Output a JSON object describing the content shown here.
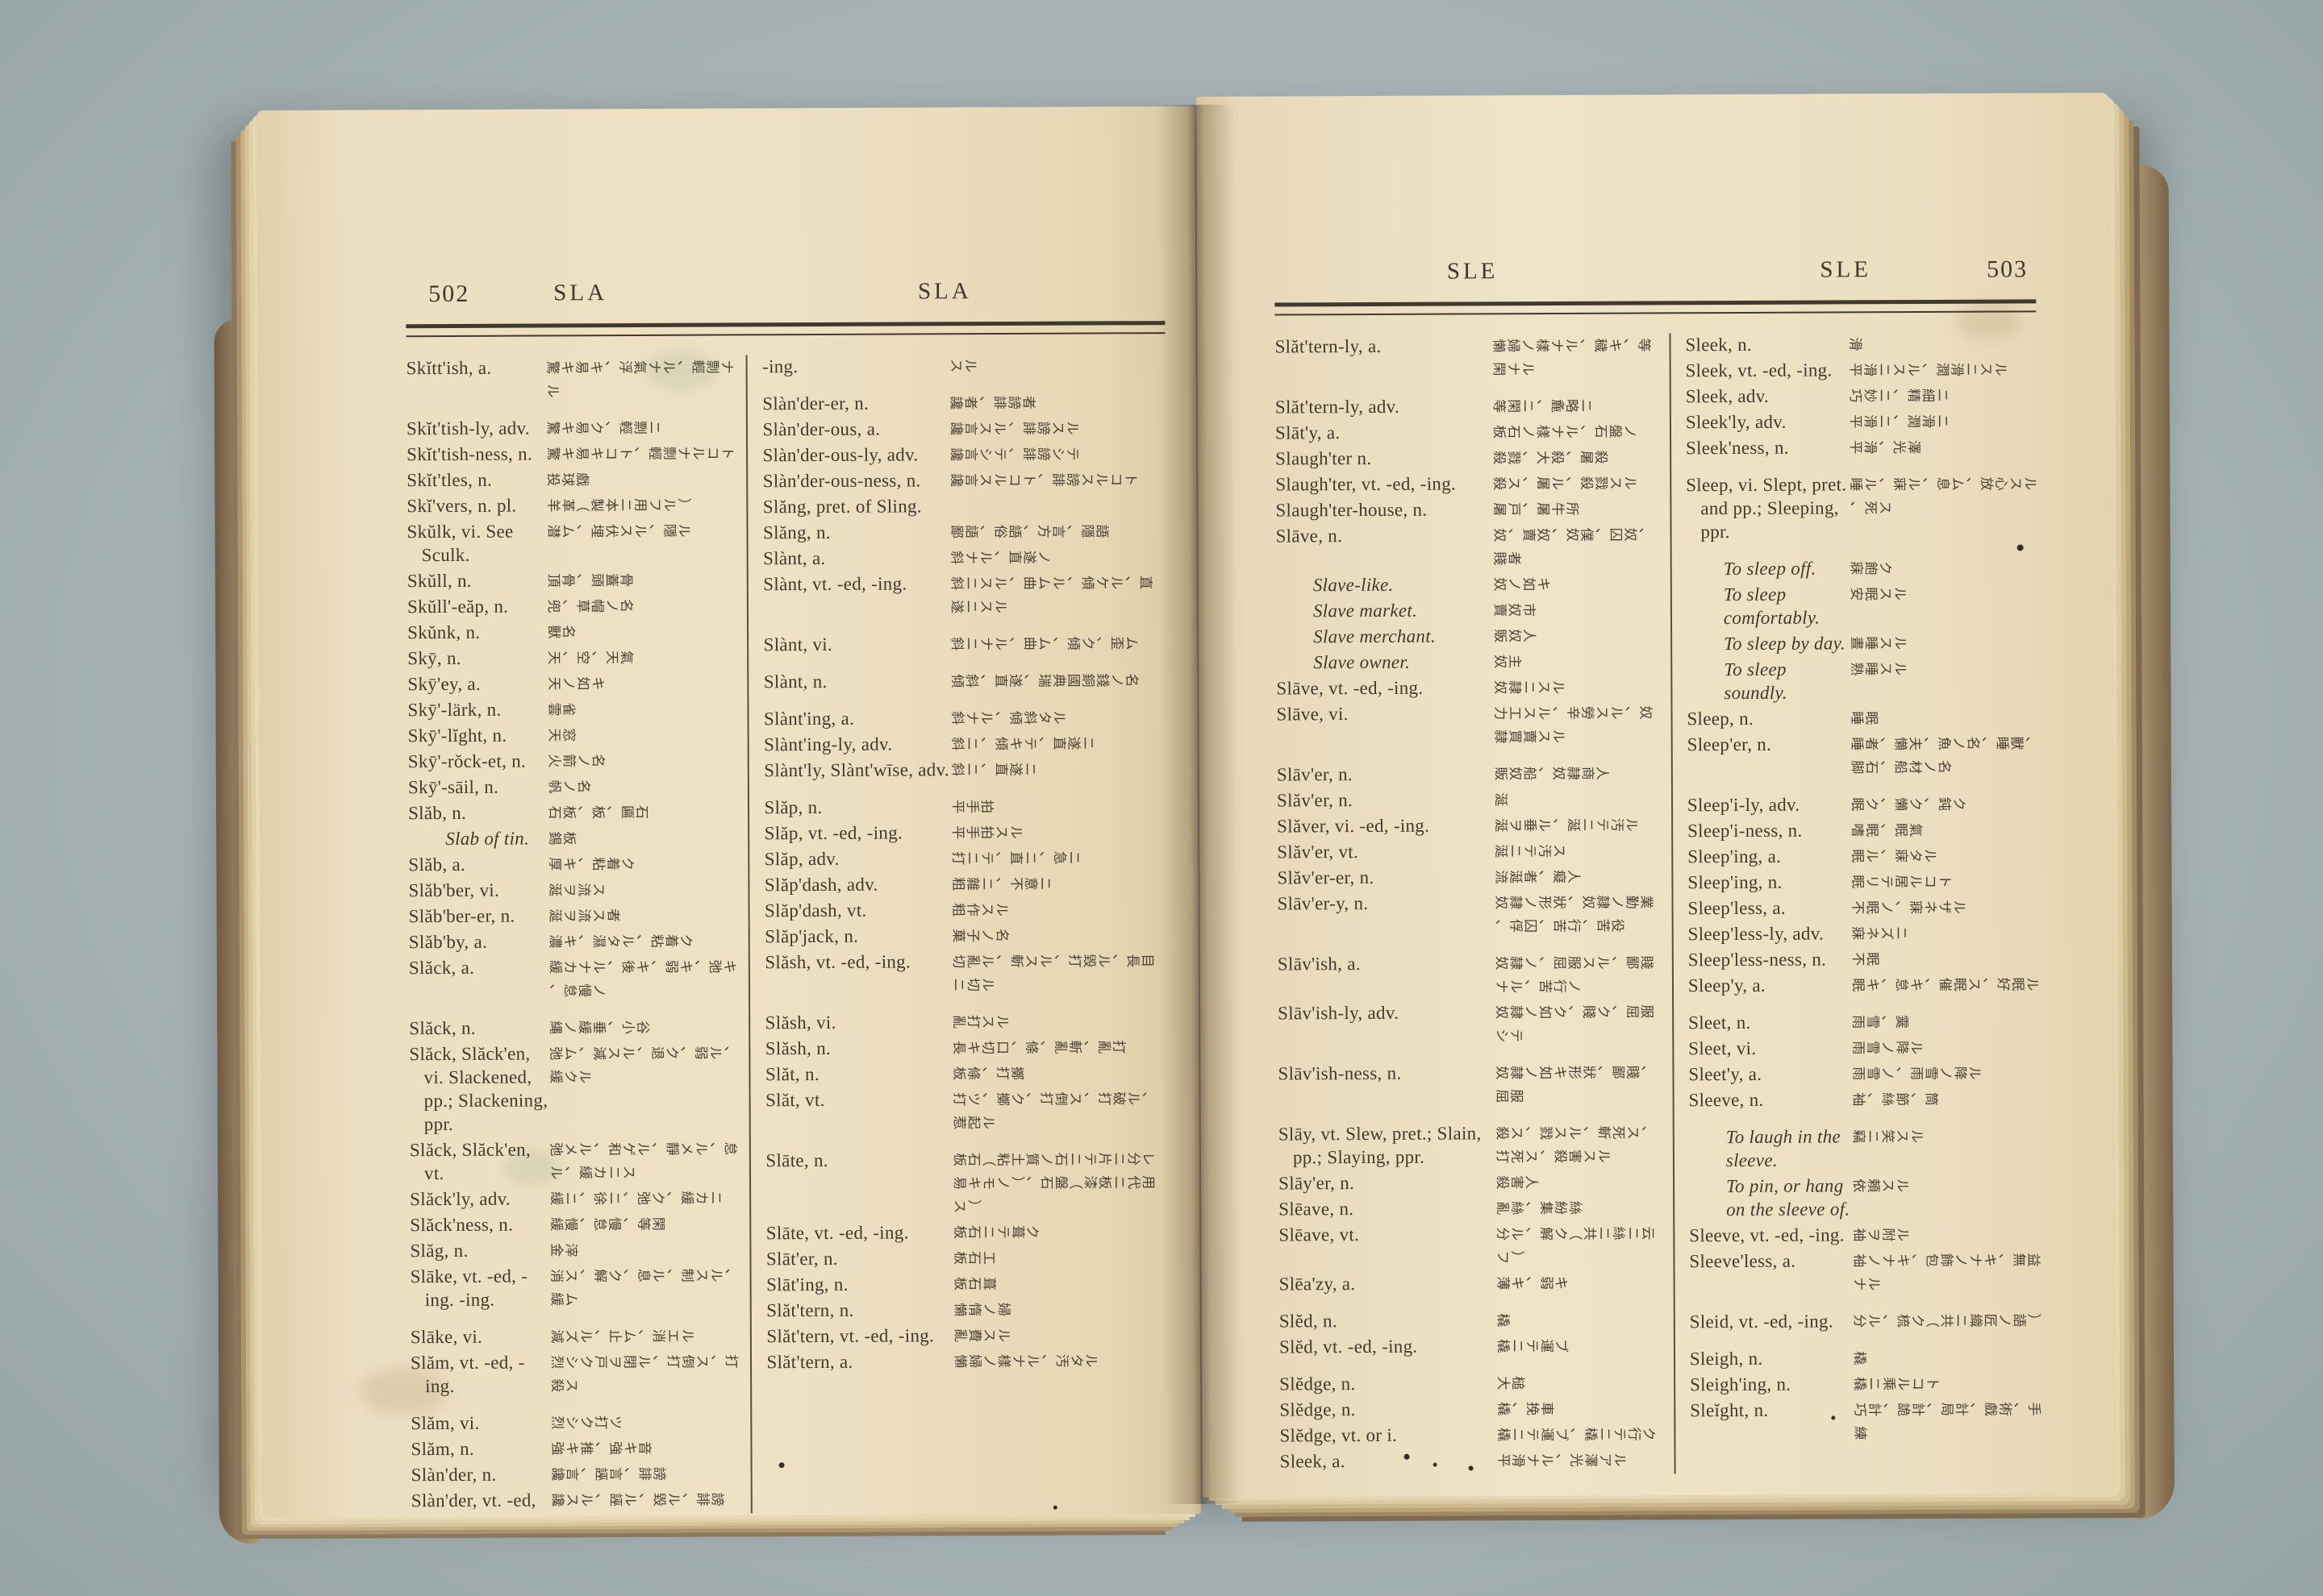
{
  "photo": {
    "background_hex": "#a7b3b4",
    "paper_hex": "#e9dbba",
    "ink_hex": "#41392e"
  },
  "book": {
    "pages": [
      {
        "page_number": "502",
        "header_col1": "SLA",
        "header_col2": "SLA",
        "columns": [
          [
            {
              "en": "Skĭtt'ish, a.",
              "jp": "驚キ易キ、浮氣ナル、輕剽ナル",
              "gap": true
            },
            {
              "en": "Skĭt'tish-ly, adv.",
              "jp": "驚キ易ク、輕剽ニ"
            },
            {
              "en": "Skĭt'tish-ness, n.",
              "jp": "驚キ易キコト、輕剽ナルコト"
            },
            {
              "en": "Skĭt'tles, n.",
              "jp": "投球戲"
            },
            {
              "en": "Skĭ'vers, n. pl.",
              "jp": "羊革（製本ニ用フル）"
            },
            {
              "en": "Skŭlk, vi. See Sculk.",
              "jp": "潜ム、埋伏スル、隱ル"
            },
            {
              "en": "Skŭll, n.",
              "jp": "頂骨、頭蓋骨"
            },
            {
              "en": "Skŭll'-eăp, n.",
              "jp": "兜、草帽ノ名"
            },
            {
              "en": "Skŭnk, n.",
              "jp": "獸名"
            },
            {
              "en": "Skȳ, n.",
              "jp": "天、空、天氣"
            },
            {
              "en": "Skȳ'ey, a.",
              "jp": "天ノ如キ"
            },
            {
              "en": "Skȳ'-lärk, n.",
              "jp": "雲雀"
            },
            {
              "en": "Skȳ'-lĭght, n.",
              "jp": "天窓"
            },
            {
              "en": "Skȳ'-rŏck-et, n.",
              "jp": "火箭ノ名"
            },
            {
              "en": "Skȳ'-sāil, n.",
              "jp": "帆ノ名"
            },
            {
              "en": "Slăb, n.",
              "jp": "石板、板、匾石"
            },
            {
              "en": "Slab of tin.",
              "jp": "錫板",
              "sub": true
            },
            {
              "en": "Slăb, a.",
              "jp": "厚キ、粘着ク"
            },
            {
              "en": "Slăb'ber, vi.",
              "jp": "涎ヲ流ス"
            },
            {
              "en": "Slăb'ber-er, n.",
              "jp": "涎ヲ流ス者"
            },
            {
              "en": "Slăb'by, a.",
              "jp": "濃キ、濕タル、粘着ク"
            },
            {
              "en": "Slăck, a.",
              "jp": "緩カナル、後キ、弱キ、弛キ、怠慢ノ",
              "gap": true
            },
            {
              "en": "Slăck, n.",
              "jp": "縄ノ緩垂、小谷"
            },
            {
              "en": "Slăck, Slăck'en, vi. Slackened, pp.; Slackening, ppr.",
              "jp": "弛ム、減スル、退ク、弱ル、緩クル"
            },
            {
              "en": "Slăck, Slăck'en, vt.",
              "jp": "弛メル、和ゲル、靜メル、怠ル、緩カニス"
            },
            {
              "en": "Slăck'ly, adv.",
              "jp": "緩ニ、徐ニ、弛ク、緩カニ"
            },
            {
              "en": "Slăck'ness, n.",
              "jp": "緩慢、怠慢、等閑"
            },
            {
              "en": "Slăg, n.",
              "jp": "金滓"
            },
            {
              "en": "Slāke, vt. -ed, -ing. -ing.",
              "jp": "消ス、解ク、息ル、制スル、緩ム",
              "gap": true
            },
            {
              "en": "Slāke, vi.",
              "jp": "減ズル、止ム、消エル"
            },
            {
              "en": "Slăm, vt. -ed, -ing.",
              "jp": "烈シク戸ヲ閉ル、打倒ス、打殺ス",
              "gap": true
            },
            {
              "en": "Slăm, vi.",
              "jp": "烈シク打ツ"
            },
            {
              "en": "Slăm, n.",
              "jp": "強キ推、強キ音"
            },
            {
              "en": "Slàn'der, n.",
              "jp": "讒言、誣言、誹謗"
            },
            {
              "en": "Slàn'der, vt. -ed,",
              "jp": "讒スル、誣ル、毀ル、誹謗"
            }
          ],
          [
            {
              "en": "-ing.",
              "jp": "スル",
              "gap": true
            },
            {
              "en": "Slàn'der-er, n.",
              "jp": "讒者、誹謗者"
            },
            {
              "en": "Slàn'der-ous, a.",
              "jp": "讒言スル、誹謗スル"
            },
            {
              "en": "Slàn'der-ous-ly, adv.",
              "jp": "讒言シテ、誹謗シテ"
            },
            {
              "en": "Slàn'der-ous-ness, n.",
              "jp": "讒言スルコト、誹謗スルコト"
            },
            {
              "en": "Slăng, pret. of Sling.",
              "jp": ""
            },
            {
              "en": "Slăng, n.",
              "jp": "鄙語、俗語、方言、隱語"
            },
            {
              "en": "Slànt, a.",
              "jp": "斜ナル、直遂ノ"
            },
            {
              "en": "Slànt, vt. -ed, -ing.",
              "jp": "斜ニスル、曲ムル、傾ケル、直遂ニスル",
              "gap": true
            },
            {
              "en": "Slànt, vi.",
              "jp": "斜ニナル、曲ム、傾ク、歪ム",
              "gap": true
            },
            {
              "en": "Slànt, n.",
              "jp": "傾斜、直遂、瑞典國銅錢ノ名",
              "gap": true
            },
            {
              "en": "Slànt'ing, a.",
              "jp": "斜ナル、傾斜タル"
            },
            {
              "en": "Slànt'ing-ly, adv.",
              "jp": "斜ニ、傾キテ、直遂ニ"
            },
            {
              "en": "Slànt'ly, Slànt'wīse, adv.",
              "jp": "斜ニ、直遂ニ",
              "gap": true
            },
            {
              "en": "Slăp, n.",
              "jp": "平手拍"
            },
            {
              "en": "Slăp, vt. -ed, -ing.",
              "jp": "平手拍スル"
            },
            {
              "en": "Slăp, adv.",
              "jp": "打ニテ、直ニ、急ニ"
            },
            {
              "en": "Slăp'dash, adv.",
              "jp": "粗雜ニ、不意ニ"
            },
            {
              "en": "Slăp'dash, vt.",
              "jp": "粗作スル"
            },
            {
              "en": "Slăp'jack, n.",
              "jp": "菓子ノ名"
            },
            {
              "en": "Slăsh, vt. -ed, -ing.",
              "jp": "切亂ル、斬スル、打毀ル、長目ニ切ル",
              "gap": true
            },
            {
              "en": "Slăsh, vi.",
              "jp": "亂打スル"
            },
            {
              "en": "Slăsh, n.",
              "jp": "長キ切口、條、亂斬、亂打"
            },
            {
              "en": "Slăt, n.",
              "jp": "板條、打擲"
            },
            {
              "en": "Slăt, vt.",
              "jp": "打ツ、擲ク、打倒ス、打破ル、惹起ル",
              "gap": true
            },
            {
              "en": "Slāte, n.",
              "jp": "板石（粘土質ノ石ニテ片ニ分レ易キモノ）、石盤（漆板ニ代用ス）"
            },
            {
              "en": "Slāte, vt. -ed, -ing.",
              "jp": "板石ニテ葺ク"
            },
            {
              "en": "Slāt'er, n.",
              "jp": "板石工"
            },
            {
              "en": "Slāt'ing, n.",
              "jp": "板石葺"
            },
            {
              "en": "Slăt'tern, n.",
              "jp": "懶惰ノ婦"
            },
            {
              "en": "Slăt'tern, vt. -ed, -ing.",
              "jp": "亂費スル"
            },
            {
              "en": "Slăt'tern, a.",
              "jp": "懶婦ノ樣ナル、汚タル"
            }
          ]
        ]
      },
      {
        "page_number": "503",
        "header_col1": "SLE",
        "header_col2": "SLE",
        "columns": [
          [
            {
              "en": "Slăt'tern-ly, a.",
              "jp": "懶婦ノ樣ナル、穢キ、等閑ナル",
              "gap": true
            },
            {
              "en": "Slăt'tern-ly, adv.",
              "jp": "等閑ニ、麁略ニ"
            },
            {
              "en": "Slāt'y, a.",
              "jp": "板石ノ樣ナル、石盤ノ"
            },
            {
              "en": "Slaugh'ter n.",
              "jp": "殺戮、大殺、屠殺"
            },
            {
              "en": "Slaugh'ter, vt. -ed, -ing.",
              "jp": "殺ス、屠ル、殺戮スル"
            },
            {
              "en": "Slaugh'ter-house, n.",
              "jp": "屠戸、屠牛所"
            },
            {
              "en": "Slāve, n.",
              "jp": "奴、賣奴、奴僕、囚奴、賤者"
            },
            {
              "en": "Slave-like.",
              "jp": "奴ノ如キ",
              "sub": true
            },
            {
              "en": "Slave market.",
              "jp": "賣奴市",
              "sub": true
            },
            {
              "en": "Slave merchant.",
              "jp": "販奴人",
              "sub": true
            },
            {
              "en": "Slave owner.",
              "jp": "奴主",
              "sub": true
            },
            {
              "en": "Slāve, vt. -ed, -ing.",
              "jp": "奴隷ニスル"
            },
            {
              "en": "Slāve, vi.",
              "jp": "力工スル、辛勞スル、奴隷買賣スル",
              "gap": true
            },
            {
              "en": "Slāv'er, n.",
              "jp": "販奴船、奴隷商人"
            },
            {
              "en": "Slăv'er, n.",
              "jp": "涎"
            },
            {
              "en": "Slăver, vi. -ed, -ing.",
              "jp": "涎ヲ垂ル、涎ニテ汚ル"
            },
            {
              "en": "Slăv'er, vt.",
              "jp": "涎ニテ汚ス"
            },
            {
              "en": "Slăv'er-er, n.",
              "jp": "流涎者、癡人"
            },
            {
              "en": "Slāv'er-y, n.",
              "jp": "奴隷ノ形狀、奴隷ノ勤業、俘囚、苦行、苦役",
              "gap": true
            },
            {
              "en": "Slāv'ish, a.",
              "jp": "奴隷ノ、屈服スル、鄙賤ナル、苦行ノ"
            },
            {
              "en": "Slāv'ish-ly, adv.",
              "jp": "奴隷ノ如ク、賤ク、屈服シテ",
              "gap": true
            },
            {
              "en": "Slāv'ish-ness, n.",
              "jp": "奴隷ノ如キ形狀、鄙賤、屈服",
              "gap": true
            },
            {
              "en": "Slāy, vt. Slew, pret.; Slain, pp.; Slaying, ppr.",
              "jp": "殺ス、戮スル、斬死ス、打死ス、殺害スル"
            },
            {
              "en": "Slāy'er, n.",
              "jp": "殺害人"
            },
            {
              "en": "Slēave, n.",
              "jp": "亂絲、集紛絲"
            },
            {
              "en": "Slēave, vt.",
              "jp": "分ル、解ク（共ニ絲ニ云フ）"
            },
            {
              "en": "Slēa'zy, a.",
              "jp": "薄キ、弱キ",
              "gap": true
            },
            {
              "en": "Slĕd, n.",
              "jp": "橇"
            },
            {
              "en": "Slĕd, vt. -ed, -ing.",
              "jp": "橇ニテ運ブ",
              "gap": true
            },
            {
              "en": "Slĕdge, n.",
              "jp": "大槌"
            },
            {
              "en": "Slĕdge, n.",
              "jp": "橇、挽車"
            },
            {
              "en": "Slĕdge, vt. or i.",
              "jp": "橇ニテ運ブ、橇ニテ行ク"
            },
            {
              "en": "Sleek, a.",
              "jp": "平滑ナル、光澤アル"
            }
          ],
          [
            {
              "en": "Sleek, n.",
              "jp": "滑"
            },
            {
              "en": "Sleek, vt. -ed, -ing.",
              "jp": "平滑ニスル、潤滑ニスル"
            },
            {
              "en": "Sleek, adv.",
              "jp": "巧妙ニ、精細ニ"
            },
            {
              "en": "Sleek'ly, adv.",
              "jp": "平滑ニ、潤滑ニ"
            },
            {
              "en": "Sleek'ness, n.",
              "jp": "平滑、光澤",
              "gap": true
            },
            {
              "en": "Sleep, vi. Slept, pret. and pp.; Sleeping, ppr.",
              "jp": "睡ル、寐ル、息ム、放心スル、死ス",
              "gap": true
            },
            {
              "en": "To sleep off.",
              "jp": "寐飽ク",
              "sub": true
            },
            {
              "en": "To sleep comfortably.",
              "jp": "安眠スル",
              "sub": true
            },
            {
              "en": "To sleep by day.",
              "jp": "晝睡スル",
              "sub": true
            },
            {
              "en": "To sleep soundly.",
              "jp": "熟睡スル",
              "sub": true
            },
            {
              "en": "Sleep, n.",
              "jp": "睡眠"
            },
            {
              "en": "Sleep'er, n.",
              "jp": "睡者、懶夫、魚ノ名、睡獸、脚石、船材ノ名",
              "gap": true
            },
            {
              "en": "Sleep'i-ly, adv.",
              "jp": "眠ク、懶ク、鈍ク"
            },
            {
              "en": "Sleep'i-ness, n.",
              "jp": "嗜眠、眠氣"
            },
            {
              "en": "Sleep'ing, a.",
              "jp": "眠ル、寐タル"
            },
            {
              "en": "Sleep'ing, n.",
              "jp": "眠リテ居ルコト"
            },
            {
              "en": "Sleep'less, a.",
              "jp": "不眠ノ、寐ネザル"
            },
            {
              "en": "Sleep'less-ly, adv.",
              "jp": "寐ネズニ"
            },
            {
              "en": "Sleep'less-ness, n.",
              "jp": "不眠"
            },
            {
              "en": "Sleep'y, a.",
              "jp": "眠キ、怠キ、催眠ス、好眠ル",
              "gap": true
            },
            {
              "en": "Sleet, n.",
              "jp": "雨雪、霙"
            },
            {
              "en": "Sleet, vi.",
              "jp": "雨雪ノ降ル"
            },
            {
              "en": "Sleet'y, a.",
              "jp": "雨雪ノ、雨雪ノ降ル"
            },
            {
              "en": "Sleeve, n.",
              "jp": "袖、絲節、筒",
              "gap": true
            },
            {
              "en": "To laugh in the sleeve.",
              "jp": "竊ニ笑スル",
              "sub": true
            },
            {
              "en": "To pin, or hang on the sleeve of.",
              "jp": "依頼スル",
              "sub": true
            },
            {
              "en": "Sleeve, vt. -ed, -ing.",
              "jp": "袖ヲ附ル"
            },
            {
              "en": "Sleeve'less, a.",
              "jp": "袖ノナキ、包飾ノナキ、無益ナル",
              "gap": true
            },
            {
              "en": "Sleid, vt. -ed, -ing.",
              "jp": "分ル、梳ク（共ニ織匠ノ語）",
              "gap": true
            },
            {
              "en": "Sleigh, n.",
              "jp": "橇"
            },
            {
              "en": "Sleigh'ing, n.",
              "jp": "橇ニ乘ルコト"
            },
            {
              "en": "Sleĭght, n.",
              "jp": "巧計、詭計、局計、戲術、手練"
            }
          ]
        ]
      }
    ]
  }
}
